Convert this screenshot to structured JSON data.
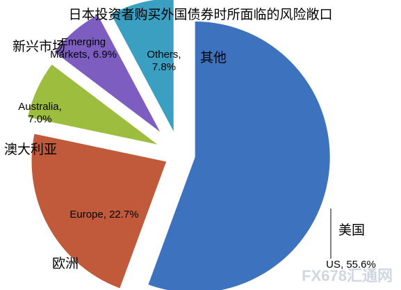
{
  "chart_data": {
    "type": "pie",
    "title": "日本投资者购买外国债券时所面临的风险敞口",
    "categories": [
      "美国",
      "欧洲",
      "澳大利亚",
      "新兴市场",
      "其他"
    ],
    "values": [
      55.6,
      22.7,
      7.0,
      6.9,
      7.8
    ],
    "value_labels": [
      "US, 55.6%",
      "Europe, 22.7%",
      "Australia, 7.0%",
      "Emerging Markets, 6.9%",
      "Others, 7.8%"
    ],
    "colors": [
      "#3d72bf",
      "#c15a3b",
      "#9dbd3f",
      "#7d5ec0",
      "#3a9fc1"
    ],
    "watermark": "FX678汇通网"
  }
}
